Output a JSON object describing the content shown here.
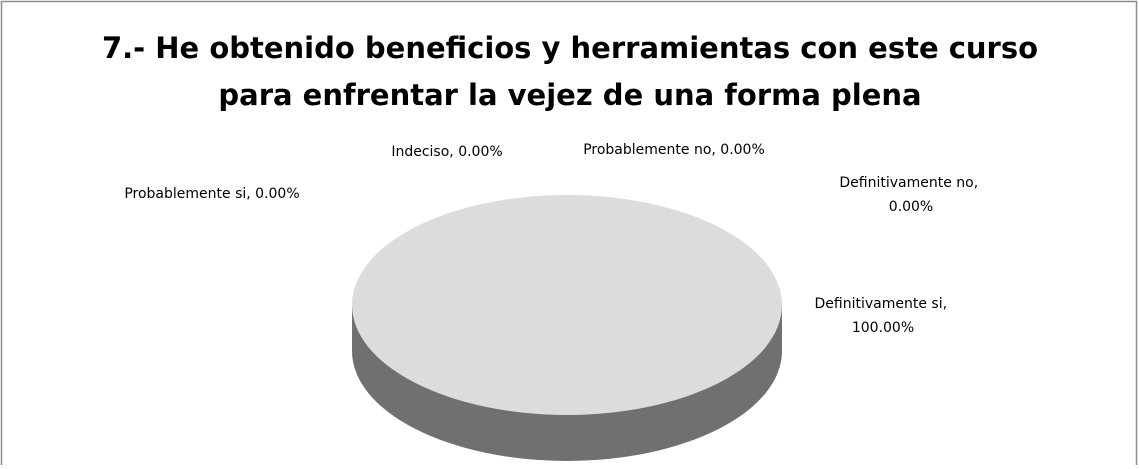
{
  "chart_data": {
    "type": "pie3d",
    "title": [
      "7.- He obtenido beneficios y herramientas con este curso",
      "para enfrentar la vejez de una forma plena"
    ],
    "categories": [
      "Definitivamente si",
      "Probablemente si",
      "Indeciso",
      "Probablemente no",
      "Definitivamente no"
    ],
    "values": [
      100,
      0,
      0,
      0,
      0
    ],
    "value_labels": [
      "100.00%",
      "0.00%",
      "0.00%",
      "0.00%",
      "0.00%"
    ],
    "colors": [
      "#dcdcdc",
      "#bfbfbf",
      "#a6a6a6",
      "#8c8c8c",
      "#f2f2f2"
    ],
    "side_color": "#707070"
  }
}
